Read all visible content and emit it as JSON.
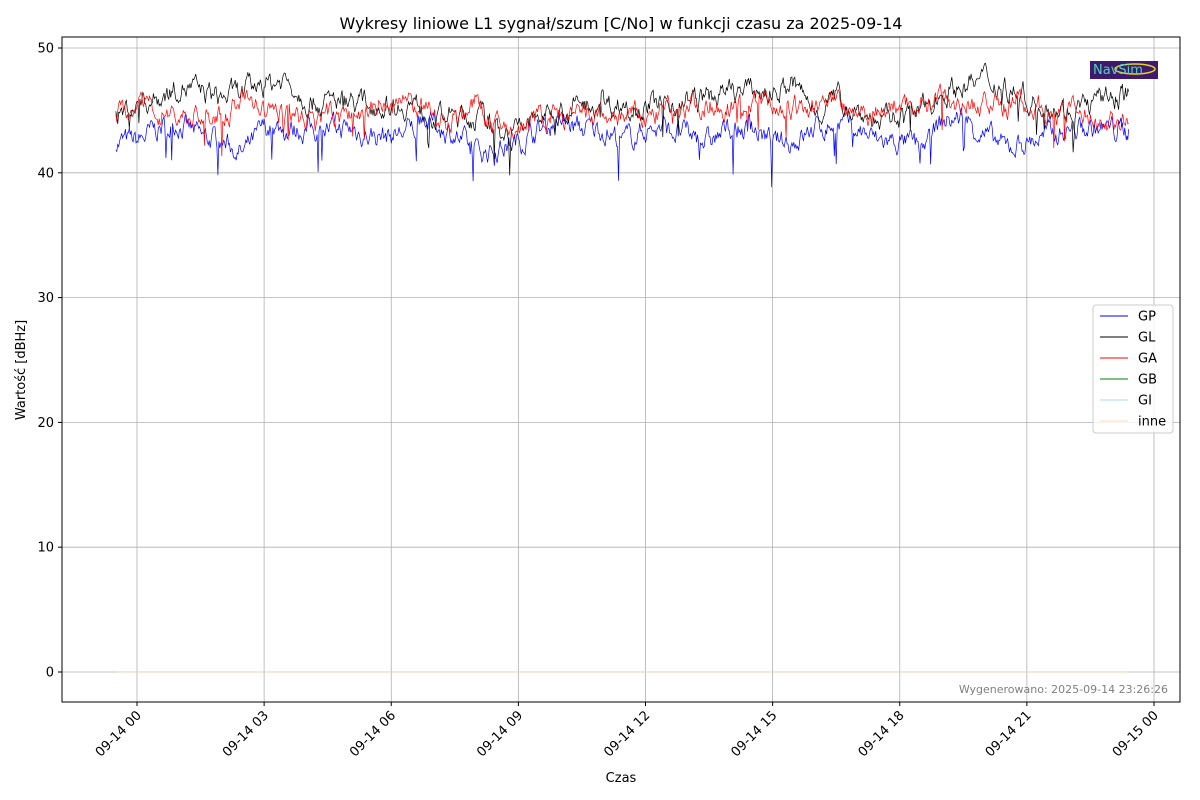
{
  "chart_data": {
    "type": "line",
    "title": "Wykresy liniowe L1 sygnał/szum [C/No] w funkcji czasu za 2025-09-14",
    "xlabel": "Czas",
    "ylabel": "Wartość [dBHz]",
    "ylim": [
      -2.5,
      51
    ],
    "xlim_hours": [
      -1.8,
      24.6
    ],
    "grid": true,
    "legend_position": "center-right",
    "yticks": [
      0,
      10,
      20,
      30,
      40,
      50
    ],
    "ytick_labels": [
      "0",
      "10",
      "20",
      "30",
      "40",
      "50"
    ],
    "xticks_hours": [
      0,
      3,
      6,
      9,
      12,
      15,
      18,
      21,
      24
    ],
    "xtick_labels": [
      "09-14 00",
      "09-14 03",
      "09-14 06",
      "09-14 09",
      "09-14 12",
      "09-14 15",
      "09-14 18",
      "09-14 21",
      "09-15 00"
    ],
    "x_hours": [
      -0.5,
      0,
      0.5,
      1,
      1.5,
      2,
      2.5,
      3,
      3.5,
      4,
      4.5,
      5,
      5.5,
      6,
      6.5,
      7,
      7.5,
      8,
      8.5,
      9,
      9.5,
      10,
      10.5,
      11,
      11.5,
      12,
      12.5,
      13,
      13.5,
      14,
      14.5,
      15,
      15.5,
      16,
      16.5,
      17,
      17.5,
      18,
      18.5,
      19,
      19.5,
      20,
      20.5,
      21,
      21.5,
      22,
      22.5,
      23,
      23.4
    ],
    "series": [
      {
        "name": "GP",
        "color": "#0000ff",
        "values": [
          42.5,
          42.5,
          43.5,
          44,
          42.8,
          42.5,
          41.5,
          43.5,
          43.5,
          43.5,
          43.5,
          43.5,
          43,
          43,
          43.5,
          44,
          43,
          41.5,
          42,
          42.5,
          43.5,
          44,
          43.5,
          43.5,
          42.5,
          43.5,
          43.5,
          43,
          42.5,
          43.5,
          43.5,
          42.5,
          42.5,
          43.5,
          44,
          43.5,
          42.5,
          42.5,
          42,
          44,
          44.5,
          43,
          42,
          42.5,
          43,
          43.5,
          43.5,
          43.5,
          43.5
        ]
      },
      {
        "name": "GL",
        "color": "#000000",
        "values": [
          44.5,
          45.5,
          46,
          47,
          46.5,
          46,
          46.5,
          47,
          47.5,
          46,
          45.5,
          46,
          45.5,
          45.5,
          45.5,
          44.5,
          44.5,
          44.5,
          43.5,
          43.5,
          44.5,
          45,
          45.5,
          45.5,
          45.5,
          45.5,
          45.5,
          46,
          46,
          46.5,
          46.5,
          46.5,
          47,
          45,
          46,
          45,
          44,
          44.5,
          45,
          46.5,
          47,
          47.5,
          47,
          46,
          45.5,
          45,
          45.5,
          46,
          46.5
        ]
      },
      {
        "name": "GA",
        "color": "#ff0000",
        "values": [
          44.5,
          45.5,
          45,
          44.5,
          44.5,
          44.5,
          46,
          45,
          44.5,
          44.5,
          44.5,
          44.5,
          45,
          45.5,
          45.5,
          44.5,
          44.5,
          45.5,
          43.5,
          43.5,
          44.5,
          44.5,
          44.5,
          44.5,
          44.5,
          44.5,
          45,
          45.5,
          45.5,
          45.5,
          45.5,
          45.5,
          45,
          45,
          46,
          45,
          45,
          45.5,
          45.5,
          46.5,
          45.5,
          45.5,
          45.5,
          45.5,
          45,
          45,
          44.5,
          44,
          44
        ]
      },
      {
        "name": "GB",
        "color": "#008000",
        "values": [
          0,
          0,
          0,
          0,
          0,
          0,
          0,
          0,
          0,
          0,
          0,
          0,
          0,
          0,
          0,
          0,
          0,
          0,
          0,
          0,
          0,
          0,
          0,
          0,
          0,
          0,
          0,
          0,
          0,
          0,
          0,
          0,
          0,
          0,
          0,
          0,
          0,
          0,
          0,
          0,
          0,
          0,
          0,
          0,
          0,
          0,
          0,
          0,
          0
        ]
      },
      {
        "name": "GI",
        "color": "#add8e6",
        "values": [
          0,
          0,
          0,
          0,
          0,
          0,
          0,
          0,
          0,
          0,
          0,
          0,
          0,
          0,
          0,
          0,
          0,
          0,
          0,
          0,
          0,
          0,
          0,
          0,
          0,
          0,
          0,
          0,
          0,
          0,
          0,
          0,
          0,
          0,
          0,
          0,
          0,
          0,
          0,
          0,
          0,
          0,
          0,
          0,
          0,
          0,
          0,
          0,
          0
        ]
      },
      {
        "name": "inne",
        "color": "#ffdab9",
        "values": [
          0,
          0,
          0,
          0,
          0,
          0,
          0,
          0,
          0,
          0,
          0,
          0,
          0,
          0,
          0,
          0,
          0,
          0,
          0,
          0,
          0,
          0,
          0,
          0,
          0,
          0,
          0,
          0,
          0,
          0,
          0,
          0,
          0,
          0,
          0,
          0,
          0,
          0,
          0,
          0,
          0,
          0,
          0,
          0,
          0,
          0,
          0,
          0,
          0
        ]
      }
    ],
    "annotation": "Wygenerowano: 2025-09-14 23:26:26",
    "logo_text": "NavSim"
  }
}
